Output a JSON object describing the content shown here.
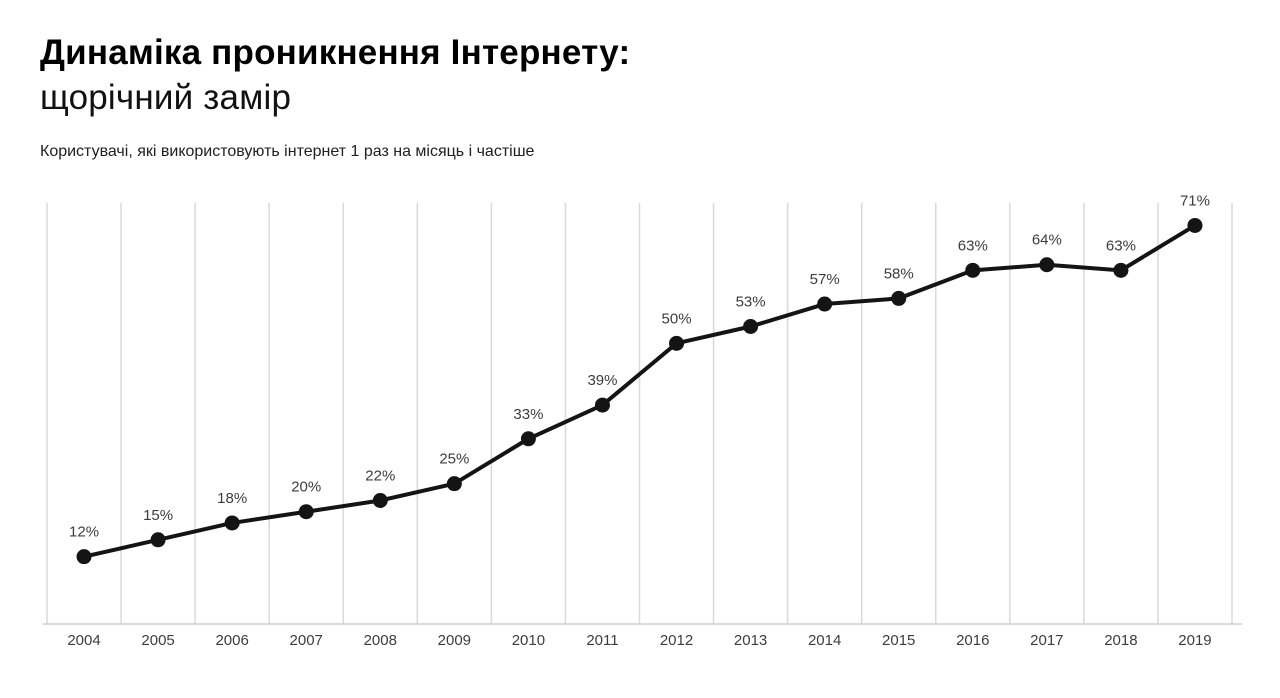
{
  "header": {
    "title_line1": "Динаміка проникнення Інтернету:",
    "title_line2": "щорічний замір",
    "subtitle": "Користувачі, які використовують інтернет 1 раз на місяць і частіше"
  },
  "chart_data": {
    "type": "line",
    "title": "Динаміка проникнення Інтернету: щорічний замір",
    "subtitle": "Користувачі, які використовують інтернет 1 раз на місяць і частіше",
    "categories": [
      "2004",
      "2005",
      "2006",
      "2007",
      "2008",
      "2009",
      "2010",
      "2011",
      "2012",
      "2013",
      "2014",
      "2015",
      "2016",
      "2017",
      "2018",
      "2019"
    ],
    "values": [
      12,
      15,
      18,
      20,
      22,
      25,
      33,
      39,
      50,
      53,
      57,
      58,
      63,
      64,
      63,
      71
    ],
    "point_labels": [
      "12%",
      "15%",
      "18%",
      "20%",
      "22%",
      "25%",
      "33%",
      "39%",
      "50%",
      "53%",
      "57%",
      "58%",
      "63%",
      "64%",
      "63%",
      "71%"
    ],
    "xlabel": "",
    "ylabel": "",
    "ylim": [
      0,
      75
    ],
    "grid": "vertical-only",
    "legend": "none",
    "colors": {
      "line": "#141414",
      "point": "#141414",
      "grid": "#d9d9d9",
      "axis": "#cfcfcf",
      "data_label": "#3d3d3d",
      "tick_label": "#3d3d3d",
      "background": "#ffffff"
    }
  }
}
